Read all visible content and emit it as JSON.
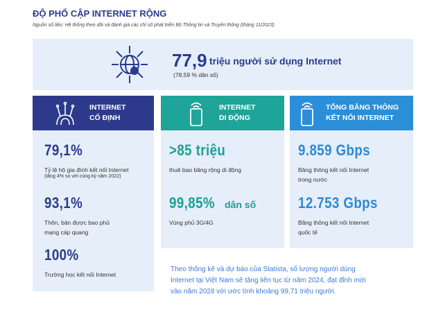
{
  "header": {
    "title": "ĐỘ PHỔ CẬP INTERNET RỘNG",
    "source": "Nguồn số liệu: Hệ thống theo dõi và đánh giá các chỉ số phát triển Bộ Thông tin và Truyền thông (tháng 11/2023)"
  },
  "highlight": {
    "value": "77,9",
    "text": "triệu người sử dụng Internet",
    "note": "(78,59 % dân số)"
  },
  "columns": [
    {
      "title": [
        "INTERNET",
        "CỐ ĐỊNH"
      ],
      "stats": [
        {
          "value": "79,1%",
          "lines": [
            "Tỷ lệ hộ gia đình kết nối Internet",
            "(tăng 4% so với cùng kỳ năm 2022)"
          ]
        },
        {
          "value": "93,1%",
          "lines": [
            "Thôn, bản được bao phủ",
            "mạng cáp quang"
          ]
        },
        {
          "value": "100%",
          "lines": [
            "Trường học kết nối Internet"
          ]
        }
      ]
    },
    {
      "title": [
        "INTERNET",
        "DI ĐỘNG"
      ],
      "stats": [
        {
          "value": ">85 triệu",
          "lines": [
            "thuê bao băng rộng di động"
          ]
        },
        {
          "value": "99,85%",
          "unit": "dân số",
          "lines": [
            "Vùng phủ 3G/4G"
          ]
        }
      ]
    },
    {
      "title": [
        "TỔNG BĂNG THÔNG",
        "KẾT NỐI INTERNET"
      ],
      "stats": [
        {
          "value": "9.859 Gbps",
          "lines": [
            "Băng thông kết nối Internet",
            "trong nước"
          ]
        },
        {
          "value": "12.753 Gbps",
          "lines": [
            "Băng thông kết nối Internet",
            "quốc tế"
          ]
        }
      ]
    }
  ],
  "footnote": [
    "Theo thống kê và dự báo của Statista, số lượng người dùng",
    "Internet tại Việt Nam sẽ tăng liên tục từ năm 2024, đạt đỉnh mới",
    "vào năm 2028 với ước tính khoảng 99,71 triệu người."
  ]
}
